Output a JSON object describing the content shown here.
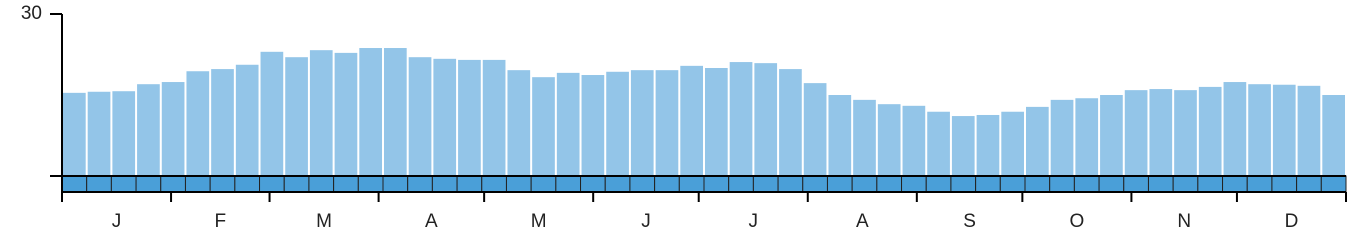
{
  "chart_data": {
    "type": "bar",
    "categories": [
      null,
      null,
      null,
      null,
      null,
      null,
      null,
      null,
      null,
      null,
      null,
      null,
      null,
      null,
      null,
      null,
      null,
      null,
      null,
      null,
      null,
      null,
      null,
      null,
      null,
      null,
      null,
      null,
      null,
      null,
      null,
      null,
      null,
      null,
      null,
      null,
      null,
      null,
      null,
      null,
      null,
      null,
      null,
      null,
      null,
      null,
      null,
      null,
      null,
      null,
      null,
      null
    ],
    "values": [
      15.4,
      15.6,
      15.7,
      17.0,
      17.4,
      19.4,
      19.8,
      20.6,
      23.0,
      22.0,
      23.3,
      22.8,
      23.7,
      23.7,
      22.0,
      21.7,
      21.5,
      21.5,
      19.6,
      18.3,
      19.1,
      18.7,
      19.3,
      19.6,
      19.6,
      20.4,
      20.0,
      21.1,
      20.9,
      19.8,
      17.2,
      15.0,
      14.1,
      13.3,
      13.0,
      11.9,
      11.1,
      11.3,
      11.9,
      12.8,
      14.1,
      14.4,
      15.0,
      15.9,
      16.1,
      15.9,
      16.5,
      17.4,
      17.0,
      16.9,
      16.7,
      15.0
    ],
    "color": "#93c5e8",
    "ylim": [
      0,
      30
    ],
    "yticks": [
      30
    ],
    "month_labels": [
      "J",
      "F",
      "M",
      "A",
      "M",
      "J",
      "J",
      "A",
      "S",
      "O",
      "N",
      "D"
    ]
  }
}
